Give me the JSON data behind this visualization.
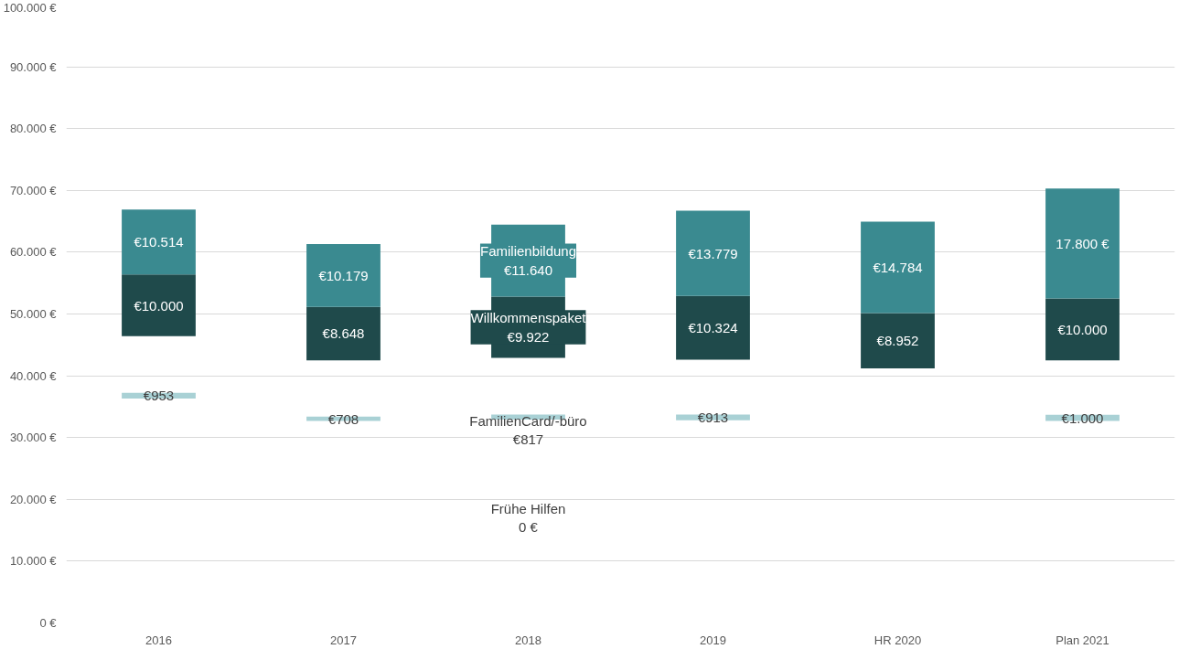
{
  "chart_data": {
    "type": "bar",
    "categories": [
      "2016",
      "2017",
      "2018",
      "2019",
      "HR 2020",
      "Plan 2021"
    ],
    "series": [
      {
        "color": "#a9d1d5",
        "values": [
          953,
          708,
          817,
          913,
          null,
          1000
        ],
        "base": [
          36300,
          32700,
          32900,
          32800,
          null,
          32700
        ],
        "value_labels": [
          "€953",
          "€708",
          "FamilienCard/-büro\n€817",
          "€913",
          null,
          "€1.000"
        ]
      },
      {
        "color": "#1f4a4b",
        "values": [
          10000,
          8648,
          9922,
          10324,
          8952,
          10000
        ],
        "base": [
          46400,
          42500,
          42900,
          42600,
          41200,
          42500
        ],
        "value_labels": [
          "€10.000",
          "€8.648",
          "Willkommenspaket\n€9.922",
          "€10.324",
          "€8.952",
          "€10.000"
        ]
      },
      {
        "color": "#3a8a90",
        "values": [
          10514,
          10179,
          11640,
          13779,
          14784,
          17800
        ],
        "base": [
          56400,
          51148,
          52822,
          52924,
          50152,
          52500
        ],
        "value_labels": [
          "€10.514",
          "€10.179",
          "Familienbildung\n€11.640",
          "€13.779",
          "€14.784",
          "17.800 €"
        ]
      }
    ],
    "annotations": [
      "Frühe Hilfen\n0 €"
    ],
    "ylim": [
      0,
      100000
    ],
    "yticks": [
      {
        "value": 0,
        "label": "0 €"
      },
      {
        "value": 10000,
        "label": "10.000 €"
      },
      {
        "value": 20000,
        "label": "20.000 €"
      },
      {
        "value": 30000,
        "label": "30.000 €"
      },
      {
        "value": 40000,
        "label": "40.000 €"
      },
      {
        "value": 50000,
        "label": "50.000 €"
      },
      {
        "value": 60000,
        "label": "60.000 €"
      },
      {
        "value": 70000,
        "label": "70.000 €"
      },
      {
        "value": 80000,
        "label": "80.000 €"
      },
      {
        "value": 90000,
        "label": "90.000 €"
      },
      {
        "value": 100000,
        "label": "100.000 €"
      }
    ],
    "grid": "y"
  }
}
